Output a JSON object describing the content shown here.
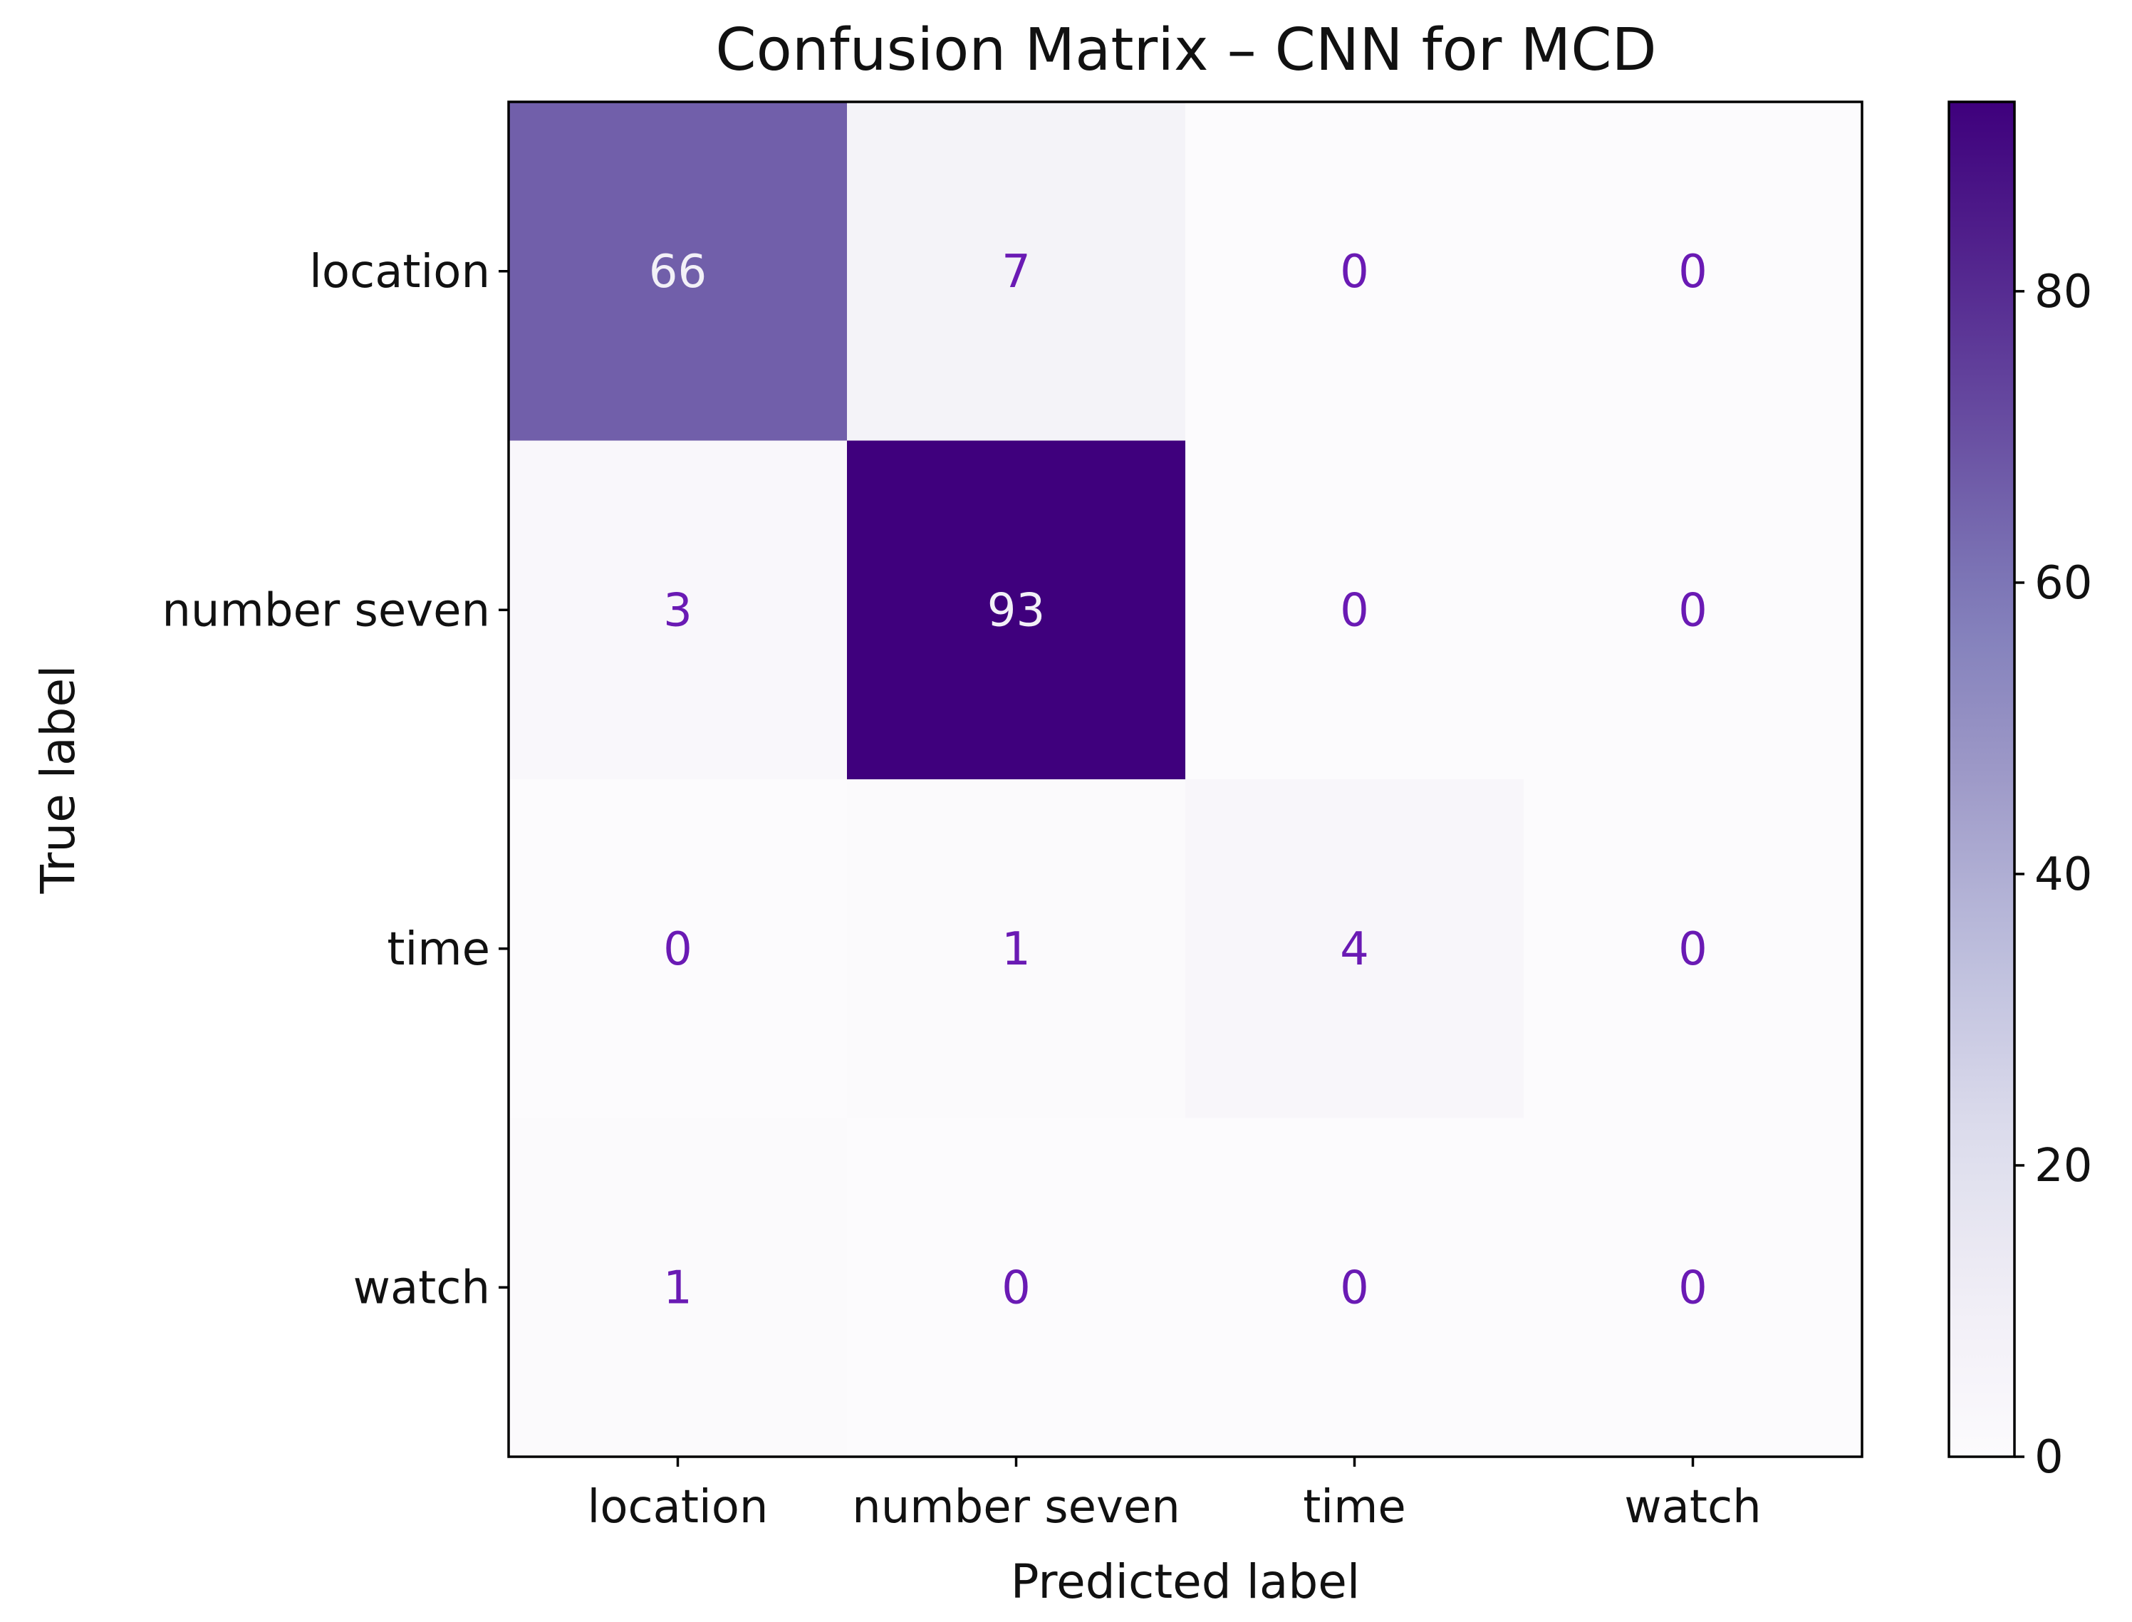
{
  "chart_data": {
    "type": "heatmap",
    "title": "Confusion Matrix – CNN for MCD",
    "xlabel": "Predicted label",
    "ylabel": "True label",
    "row_labels": [
      "location",
      "number seven ",
      "time",
      "watch"
    ],
    "col_labels": [
      "location",
      "number seven",
      "time",
      "watch"
    ],
    "values": [
      [
        66,
        7,
        0,
        0
      ],
      [
        3,
        93,
        0,
        0
      ],
      [
        0,
        1,
        4,
        0
      ],
      [
        1,
        0,
        0,
        0
      ]
    ],
    "colormap": "Purples",
    "vmin": 0,
    "vmax": 93,
    "colorbar_ticks": [
      0,
      20,
      40,
      60,
      80
    ],
    "grid": false,
    "colorbar_position": "right",
    "colors": {
      "low": "#fcfbfd",
      "high": "#3f007d",
      "light_text": "#f2f0f7",
      "dark_text": "#6a1ab4"
    }
  }
}
